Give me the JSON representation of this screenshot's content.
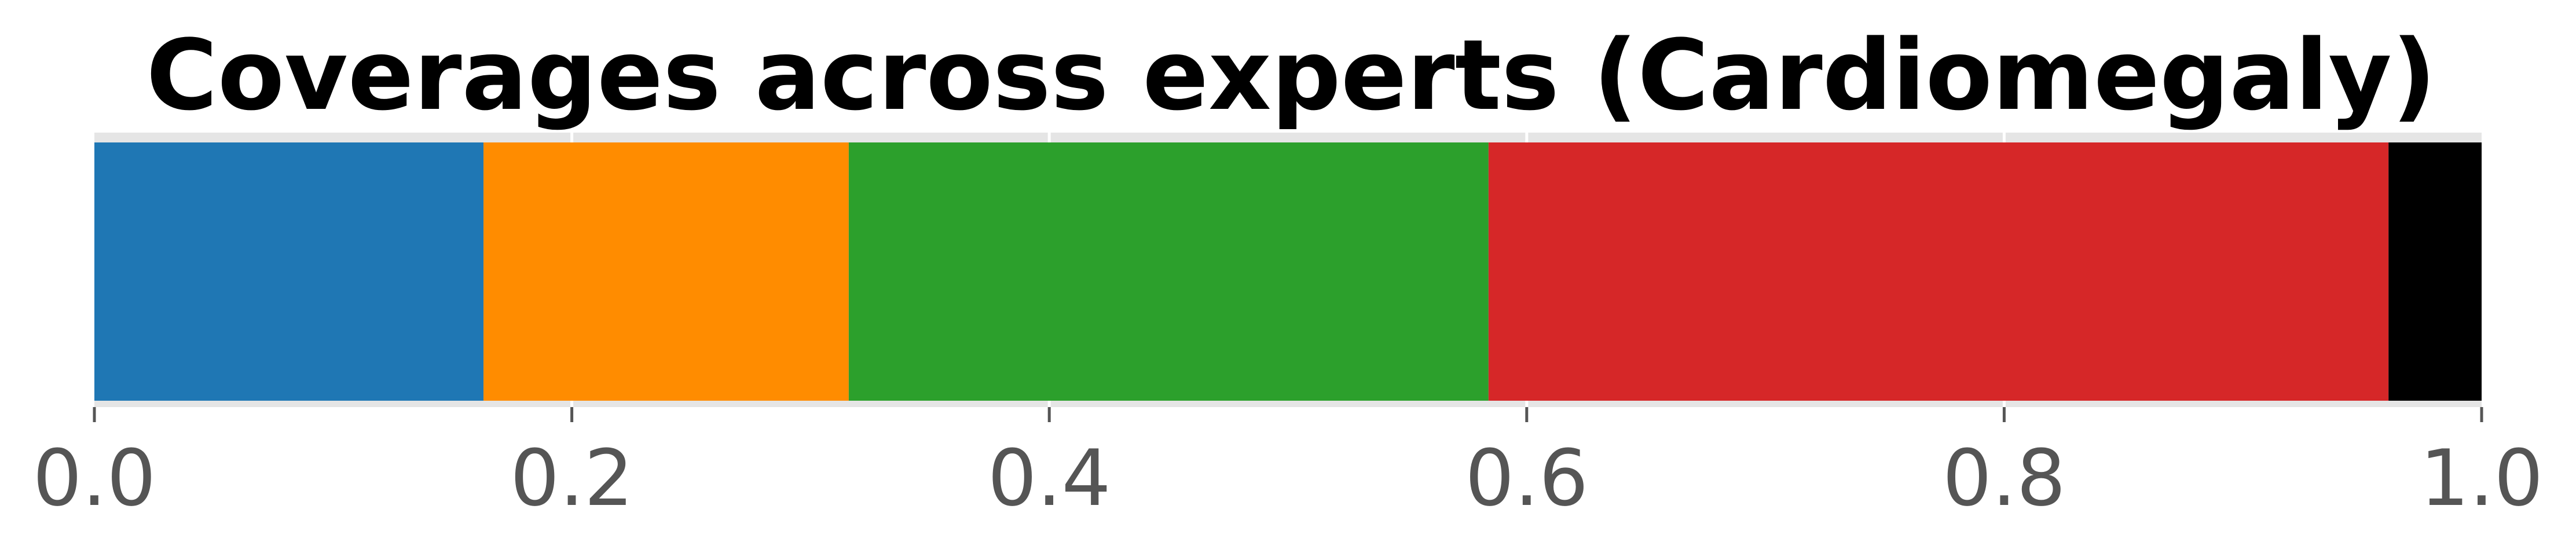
{
  "chart_data": {
    "type": "bar",
    "orientation": "horizontal",
    "stacked": true,
    "title": "Coverages across experts (Cardiomegaly)",
    "xlabel": "",
    "ylabel": "",
    "xlim": [
      0.0,
      1.0
    ],
    "xticks": [
      0.0,
      0.2,
      0.4,
      0.6,
      0.8,
      1.0
    ],
    "xtick_labels": [
      "0.0",
      "0.2",
      "0.4",
      "0.6",
      "0.8",
      "1.0"
    ],
    "grid": true,
    "legend": "none",
    "categories": [
      ""
    ],
    "series": [
      {
        "values": [
          0.163
        ],
        "color": "#1f77b4"
      },
      {
        "values": [
          0.153
        ],
        "color": "#ff8c00"
      },
      {
        "values": [
          0.268
        ],
        "color": "#2ca02c"
      },
      {
        "values": [
          0.377
        ],
        "color": "#d62728"
      },
      {
        "values": [
          0.039
        ],
        "color": "#000000"
      }
    ]
  }
}
